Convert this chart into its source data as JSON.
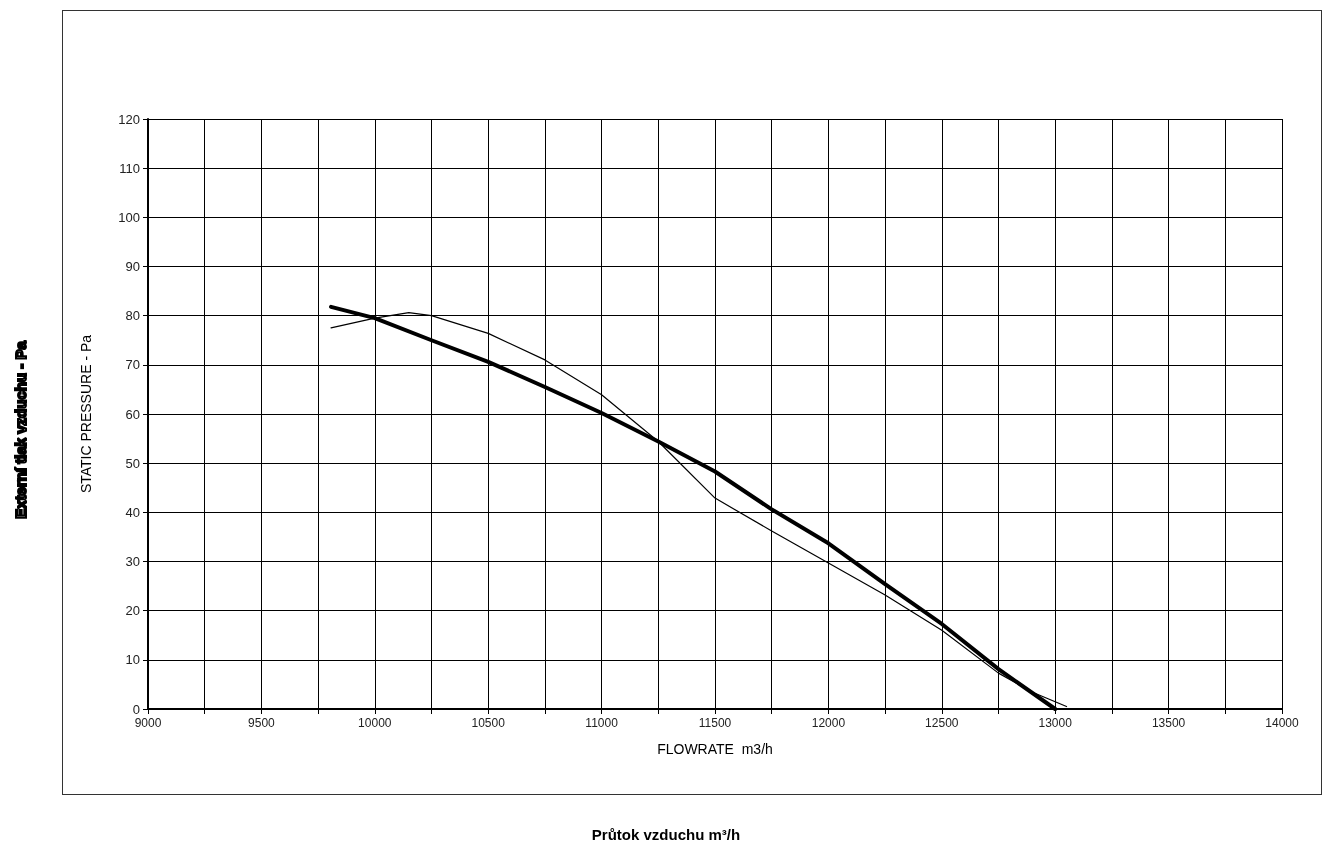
{
  "chart_data": {
    "type": "line",
    "xlabel": "FLOWRATE  m3/h",
    "ylabel": "STATIC PRESSURE - Pa",
    "annotations": [
      "Externí tlak vzduchu - Pa",
      "Průtok vzduchu m³/h"
    ],
    "series": [
      {
        "color": "#000000",
        "x": [
          9807,
          10000,
          10250,
          10500,
          10750,
          11000,
          11250,
          11500,
          11750,
          12000,
          12250,
          12500,
          12750,
          13000
        ],
        "values": [
          81.8,
          79.5,
          75.0,
          70.6,
          65.5,
          60.2,
          54.4,
          48.3,
          40.6,
          33.7,
          25.4,
          17.3,
          8.1,
          0
        ]
      },
      {
        "color": "#000000",
        "x": [
          9807,
          10000,
          10150,
          10250,
          10500,
          10750,
          11000,
          11250,
          11500,
          11750,
          12000,
          12250,
          12500,
          12750,
          12900,
          13050
        ],
        "values": [
          77.5,
          79.5,
          80.6,
          80.0,
          76.4,
          71.0,
          63.9,
          54.4,
          42.9,
          36.2,
          29.7,
          23.2,
          16.0,
          7.3,
          3.4,
          0.5
        ]
      }
    ],
    "xlim": [
      9000,
      14000
    ],
    "xticks": [
      9000,
      {
        "value": 9250,
        "label": null
      },
      9500,
      {
        "value": 9750,
        "label": null
      },
      10000,
      {
        "value": 10250,
        "label": null
      },
      10500,
      {
        "value": 10750,
        "label": null
      },
      11000,
      {
        "value": 11250,
        "label": null
      },
      11500,
      {
        "value": 11750,
        "label": null
      },
      12000,
      {
        "value": 12250,
        "label": null
      },
      12500,
      {
        "value": 12750,
        "label": null
      },
      13000,
      {
        "value": 13250,
        "label": null
      },
      13500,
      {
        "value": 13750,
        "label": null
      },
      14000
    ],
    "ylim": [
      0,
      120
    ],
    "yticks": [
      0,
      10,
      20,
      30,
      40,
      50,
      60,
      70,
      80,
      90,
      100,
      110,
      120
    ],
    "grid": true,
    "marker": "none",
    "line_style": "solid"
  }
}
